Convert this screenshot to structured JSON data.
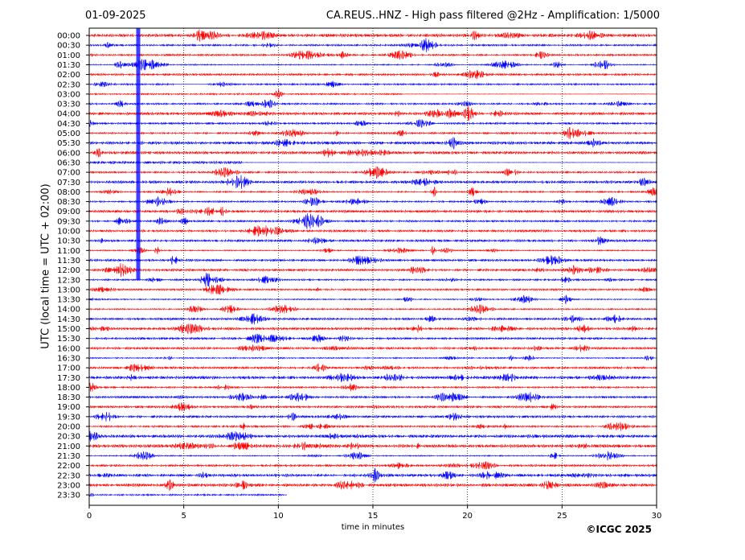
{
  "header": {
    "date": "01-09-2025",
    "title": "CA.REUS..HNZ - High pass filtered @2Hz - Amplification: 1/5000"
  },
  "footer": {
    "copyright": "©ICGC 2025"
  },
  "colors": {
    "trace_a": "#ff0000",
    "trace_b": "#0000ff",
    "grid": "#000000"
  },
  "chart_data": {
    "type": "line",
    "title": "CA.REUS..HNZ - High pass filtered @2Hz - Amplification: 1/5000",
    "xlabel": "time in minutes",
    "ylabel": "UTC (local time = UTC + 02:00)",
    "xlim": [
      0,
      30
    ],
    "x_ticks": [
      "0",
      "5",
      "10",
      "15",
      "20",
      "25",
      "30"
    ],
    "grid": "vertical dotted at 5-minute ticks",
    "trace_colors_alternating": [
      "red",
      "blue"
    ],
    "rows": [
      "00:00",
      "00:30",
      "01:00",
      "01:30",
      "02:00",
      "02:30",
      "03:00",
      "03:30",
      "04:00",
      "04:30",
      "05:00",
      "05:30",
      "06:00",
      "06:30",
      "07:00",
      "07:30",
      "08:00",
      "08:30",
      "09:00",
      "09:30",
      "10:00",
      "10:30",
      "11:00",
      "11:30",
      "12:00",
      "12:30",
      "13:00",
      "13:30",
      "14:00",
      "14:30",
      "15:00",
      "15:30",
      "16:00",
      "16:30",
      "17:00",
      "17:30",
      "18:00",
      "18:30",
      "19:00",
      "19:30",
      "20:00",
      "20:30",
      "21:00",
      "21:30",
      "22:00",
      "22:30",
      "23:00",
      "23:30"
    ],
    "notable_events": [
      {
        "row": "02:30",
        "minute_range": [
          2.4,
          2.7
        ],
        "description": "large amplitude"
      }
    ]
  }
}
